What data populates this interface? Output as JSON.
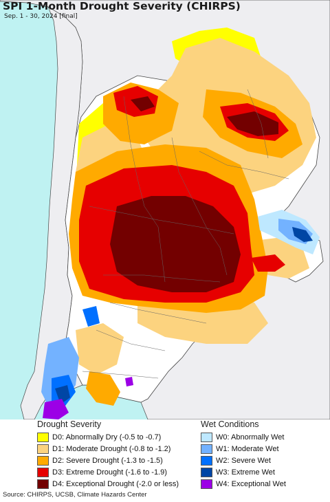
{
  "title": "SPI 1-Month Drought Severity (CHIRPS)",
  "subtitle": "Sep. 1 - 30, 2024 [final]",
  "colors": {
    "ocean": "#bff2f2",
    "land_outside": "#eeeef1",
    "no_drought": "#ffffff",
    "border": "#555555"
  },
  "legend": {
    "drought": {
      "heading": "Drought Severity",
      "items": [
        {
          "label": "D0: Abnormally Dry (-0.5 to -0.7)",
          "color": "#ffff00"
        },
        {
          "label": "D1: Moderate Drought (-0.8 to -1.2)",
          "color": "#fcd37f"
        },
        {
          "label": "D2: Severe Drought (-1.3 to -1.5)",
          "color": "#ffaa00"
        },
        {
          "label": "D3: Extreme Drought (-1.6 to -1.9)",
          "color": "#e60000"
        },
        {
          "label": "D4: Exceptional Drought (-2.0 or less)",
          "color": "#730000"
        }
      ]
    },
    "wet": {
      "heading": "Wet Conditions",
      "items": [
        {
          "label": "W0: Abnormally Wet",
          "color": "#bee8ff"
        },
        {
          "label": "W1: Moderate Wet",
          "color": "#73b2ff"
        },
        {
          "label": "W2: Severe Wet",
          "color": "#0070ff"
        },
        {
          "label": "W3: Extreme Wet",
          "color": "#0046a5"
        },
        {
          "label": "W4: Exceptional Wet",
          "color": "#9c00e6"
        }
      ]
    }
  },
  "source": "Source: CHIRPS, UCSB, Climate Hazards Center"
}
